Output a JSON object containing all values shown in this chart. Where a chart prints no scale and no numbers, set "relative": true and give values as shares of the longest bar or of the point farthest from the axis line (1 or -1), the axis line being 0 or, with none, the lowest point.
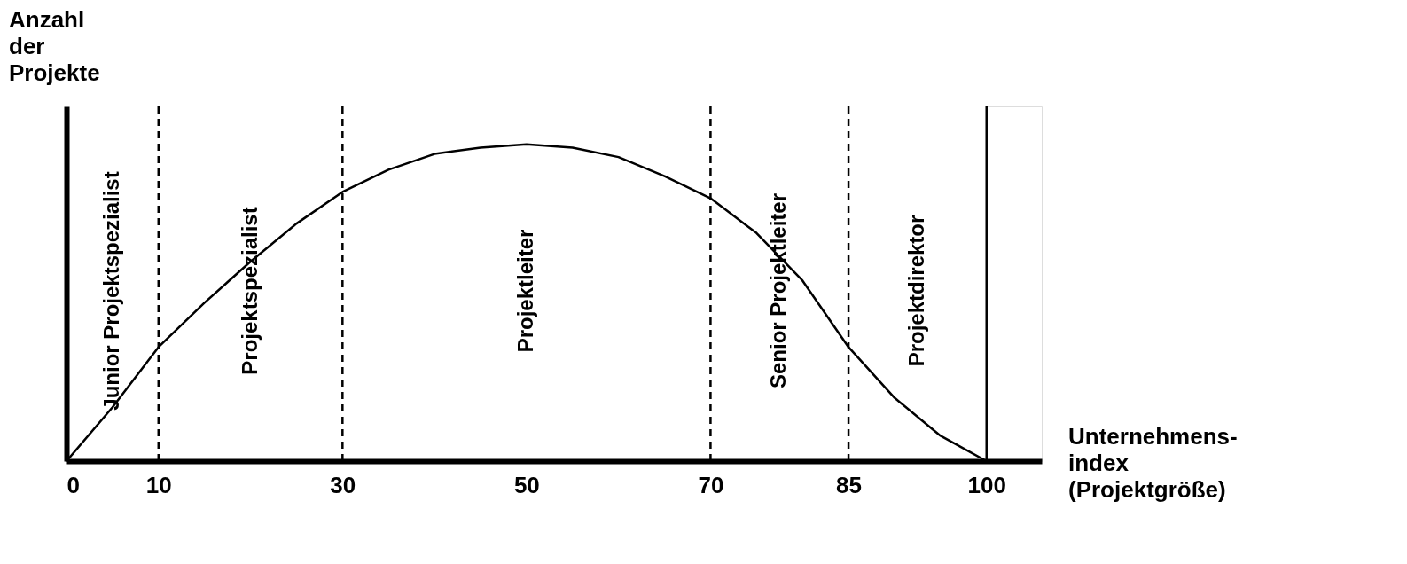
{
  "chart_data": {
    "type": "line",
    "relative": true,
    "xlabel": "Unternehmens-\nindex\n(Projektgröße)",
    "ylabel": "Anzahl\nder\nProjekte",
    "x": [
      0,
      5,
      10,
      15,
      20,
      25,
      30,
      35,
      40,
      45,
      50,
      55,
      60,
      65,
      70,
      75,
      80,
      85,
      90,
      95,
      100
    ],
    "series": [
      {
        "color": "#000000",
        "values": [
          0,
          0.17,
          0.36,
          0.5,
          0.63,
          0.75,
          0.85,
          0.92,
          0.97,
          0.99,
          1,
          0.99,
          0.96,
          0.9,
          0.83,
          0.72,
          0.57,
          0.36,
          0.2,
          0.08,
          0
        ]
      }
    ],
    "xlim": [
      0,
      106
    ],
    "xticks": [
      0,
      10,
      30,
      50,
      70,
      85,
      100
    ],
    "grid": false,
    "marker": "none",
    "line_style": "solid",
    "tick_labels": "x",
    "ref_lines": [
      {
        "axis": "x",
        "value": 10,
        "line_style": "dashed"
      },
      {
        "axis": "x",
        "value": 30,
        "line_style": "dashed"
      },
      {
        "axis": "x",
        "value": 70,
        "line_style": "dashed"
      },
      {
        "axis": "x",
        "value": 85,
        "line_style": "dashed"
      },
      {
        "axis": "x",
        "value": 100,
        "line_style": "solid"
      }
    ],
    "bands": [
      {
        "axis": "x",
        "from": 0,
        "to": 10,
        "label": "Junior Projektspezialist",
        "color": "#ffffff"
      },
      {
        "axis": "x",
        "from": 10,
        "to": 30,
        "label": "Projektspezialist",
        "color": "#ffffff"
      },
      {
        "axis": "x",
        "from": 30,
        "to": 70,
        "label": "Projektleiter",
        "color": "#ffffff"
      },
      {
        "axis": "x",
        "from": 70,
        "to": 85,
        "label": "Senior Projektleiter",
        "color": "#ffffff"
      },
      {
        "axis": "x",
        "from": 85,
        "to": 100,
        "label": "Projektdirektor",
        "color": "#ffffff"
      }
    ]
  }
}
